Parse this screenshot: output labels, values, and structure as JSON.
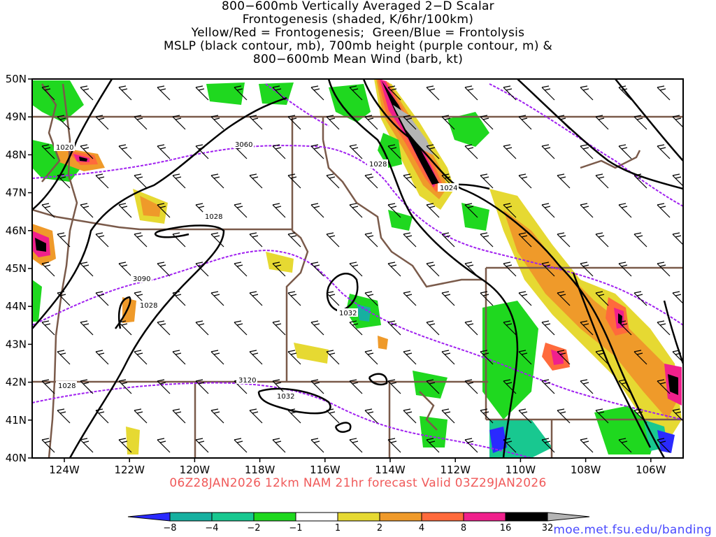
{
  "title": {
    "lines": [
      "800−600mb Vertically Averaged 2−D Scalar",
      "Frontogenesis (shaded, K/6hr/100km)",
      "Yellow/Red = Frontogenesis;  Green/Blue = Frontolysis",
      "MSLP (black contour, mb), 700mb height (purple contour, m) &",
      "800−600mb Mean Wind (barb, kt)"
    ]
  },
  "map": {
    "region": "Pacific Northwest / Northern Rockies",
    "lat_labels": [
      "50N",
      "49N",
      "48N",
      "47N",
      "46N",
      "45N",
      "44N",
      "43N",
      "42N",
      "41N",
      "40N"
    ],
    "lon_labels": [
      "124W",
      "122W",
      "120W",
      "118W",
      "116W",
      "114W",
      "112W",
      "110W",
      "108W",
      "106W"
    ],
    "mslp_labels": [
      "1020",
      "1028",
      "1028",
      "1028",
      "1032",
      "1032",
      "1024",
      "1028"
    ],
    "height_labels": [
      "3060",
      "3090",
      "3120"
    ],
    "colors": {
      "mslp_contour": "#000000",
      "height_contour": "#a020f0",
      "borders": "#7a5a4a",
      "barb": "#000000"
    }
  },
  "valid_line": "06Z28JAN2026 12km NAM 21hr forecast Valid 03Z29JAN2026",
  "colorbar": {
    "labels": [
      "−8",
      "−4",
      "−2",
      "−1",
      "1",
      "2",
      "4",
      "8",
      "16",
      "32"
    ],
    "colors": [
      "#2a2aff",
      "#16b0a0",
      "#18c890",
      "#1fd81f",
      "#ffffff",
      "#e6d932",
      "#ef9a2a",
      "#ff6a3c",
      "#f0208c",
      "#000000",
      "#b4b4b4"
    ]
  },
  "credit": "moe.met.fsu.edu/banding"
}
